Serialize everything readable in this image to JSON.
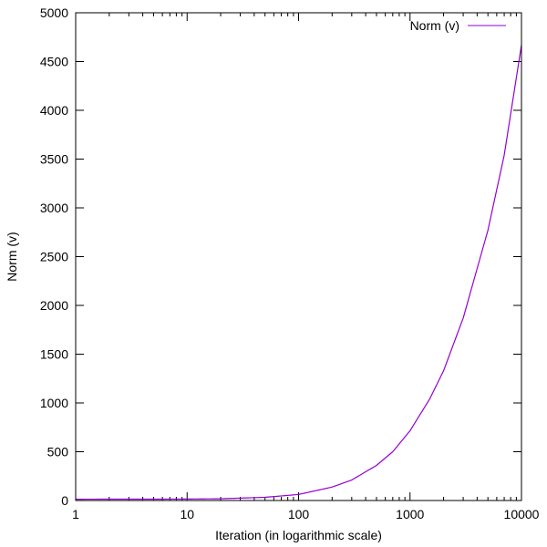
{
  "chart_data": {
    "type": "line",
    "xlabel": "Iteration (in logarithmic scale)",
    "ylabel": "Norm (v)",
    "x_scale": "log",
    "xlim": [
      1,
      10000
    ],
    "ylim": [
      0,
      5000
    ],
    "x_major_ticks": [
      1,
      10,
      100,
      1000,
      10000
    ],
    "x_tick_labels": [
      "1",
      "10",
      "100",
      "1000",
      "10000"
    ],
    "y_ticks": [
      0,
      500,
      1000,
      1500,
      2000,
      2500,
      3000,
      3500,
      4000,
      4500,
      5000
    ],
    "y_tick_labels": [
      "0",
      "500",
      "1000",
      "1500",
      "2000",
      "2500",
      "3000",
      "3500",
      "4000",
      "4500",
      "5000"
    ],
    "grid": false,
    "legend_position": "top-right",
    "series": [
      {
        "name": "Norm (v)",
        "color": "#9400d3",
        "x": [
          1,
          2,
          5,
          10,
          20,
          50,
          100,
          200,
          300,
          500,
          700,
          1000,
          1500,
          2000,
          3000,
          5000,
          7000,
          10000
        ],
        "y": [
          13,
          14,
          14,
          15,
          18,
          33,
          62,
          138,
          210,
          360,
          500,
          715,
          1040,
          1330,
          1870,
          2770,
          3540,
          4670
        ]
      }
    ]
  }
}
